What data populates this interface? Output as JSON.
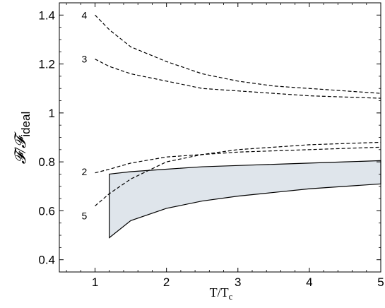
{
  "chart_data": {
    "type": "line",
    "xlabel": "T/T",
    "xlabel_sub": "c",
    "ylabel": "𝓕/𝓕",
    "ylabel_sub": "ideal",
    "xlim": [
      0.5,
      5.0
    ],
    "ylim": [
      0.35,
      1.45
    ],
    "xticks": [
      1,
      2,
      3,
      4,
      5
    ],
    "yticks": [
      0.4,
      0.6,
      0.8,
      1.0,
      1.2,
      1.4
    ],
    "ytick_labels": [
      "0.4",
      "0.6",
      "0.8",
      "1",
      "1.2",
      "1.4"
    ],
    "grid": false,
    "series": [
      {
        "name": "4",
        "style": "dashed",
        "x": [
          1.0,
          1.2,
          1.5,
          2.0,
          2.5,
          3.0,
          3.5,
          4.0,
          4.5,
          5.0
        ],
        "y": [
          1.4,
          1.34,
          1.27,
          1.21,
          1.16,
          1.13,
          1.11,
          1.1,
          1.09,
          1.08
        ]
      },
      {
        "name": "3",
        "style": "dashed",
        "x": [
          1.0,
          1.2,
          1.5,
          2.0,
          2.5,
          3.0,
          3.5,
          4.0,
          4.5,
          5.0
        ],
        "y": [
          1.22,
          1.19,
          1.16,
          1.13,
          1.1,
          1.09,
          1.08,
          1.07,
          1.065,
          1.06
        ]
      },
      {
        "name": "2",
        "style": "dashed",
        "x": [
          1.0,
          1.2,
          1.5,
          2.0,
          2.5,
          3.0,
          3.5,
          4.0,
          4.5,
          5.0
        ],
        "y": [
          0.755,
          0.77,
          0.795,
          0.82,
          0.83,
          0.84,
          0.845,
          0.85,
          0.855,
          0.86
        ]
      },
      {
        "name": "5",
        "style": "dashed",
        "x": [
          1.0,
          1.2,
          1.5,
          2.0,
          2.5,
          3.0,
          3.5,
          4.0,
          4.5,
          5.0
        ],
        "y": [
          0.62,
          0.67,
          0.73,
          0.8,
          0.83,
          0.85,
          0.86,
          0.87,
          0.875,
          0.88
        ]
      }
    ],
    "band": {
      "color": "#dfe5eb",
      "x": [
        1.2,
        1.5,
        2.0,
        2.5,
        3.0,
        3.5,
        4.0,
        4.5,
        5.0
      ],
      "upper": [
        0.75,
        0.76,
        0.77,
        0.78,
        0.785,
        0.79,
        0.795,
        0.8,
        0.805
      ],
      "lower": [
        0.49,
        0.56,
        0.61,
        0.64,
        0.66,
        0.675,
        0.69,
        0.7,
        0.71
      ]
    },
    "curve_labels": [
      {
        "text": "4",
        "x": 0.85,
        "y": 1.4
      },
      {
        "text": "3",
        "x": 0.85,
        "y": 1.22
      },
      {
        "text": "2",
        "x": 0.85,
        "y": 0.76
      },
      {
        "text": "5",
        "x": 0.85,
        "y": 0.58
      }
    ]
  }
}
